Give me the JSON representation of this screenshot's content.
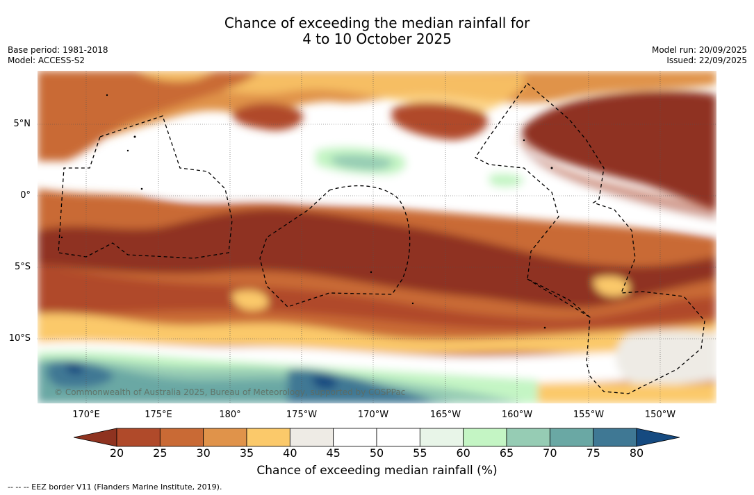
{
  "title_line1": "Chance of exceeding the median rainfall for",
  "title_line2": "4 to 10 October 2025",
  "base_period": "Base period: 1981-2018",
  "model": "Model: ACCESS-S2",
  "model_run": "Model run: 20/09/2025",
  "issued": "Issued: 22/09/2025",
  "lat_labels": [
    "5°N",
    "0°",
    "5°S",
    "10°S"
  ],
  "lon_labels": [
    "170°E",
    "175°E",
    "180°",
    "175°W",
    "170°W",
    "165°W",
    "160°W",
    "155°W",
    "150°W"
  ],
  "colorbar": {
    "label": "Chance of exceeding median rainfall (%)",
    "ticks": [
      "20",
      "25",
      "30",
      "35",
      "40",
      "45",
      "50",
      "55",
      "60",
      "65",
      "70",
      "75",
      "80"
    ],
    "colors": [
      "#8f3320",
      "#b04a2a",
      "#c96a35",
      "#e0934a",
      "#fbc96a",
      "#eeebe5",
      "#ffffff",
      "#ffffff",
      "#e8f5e8",
      "#c4f5c4",
      "#96ccb4",
      "#6aa8a4",
      "#3f7894",
      "#154a80"
    ]
  },
  "copyright": "© Commonwealth of Australia 2025, Bureau of Meteorology, supported by COSPPac",
  "footnote": "-- -- -- EEZ border V11 (Flanders Marine Institute, 2019)."
}
